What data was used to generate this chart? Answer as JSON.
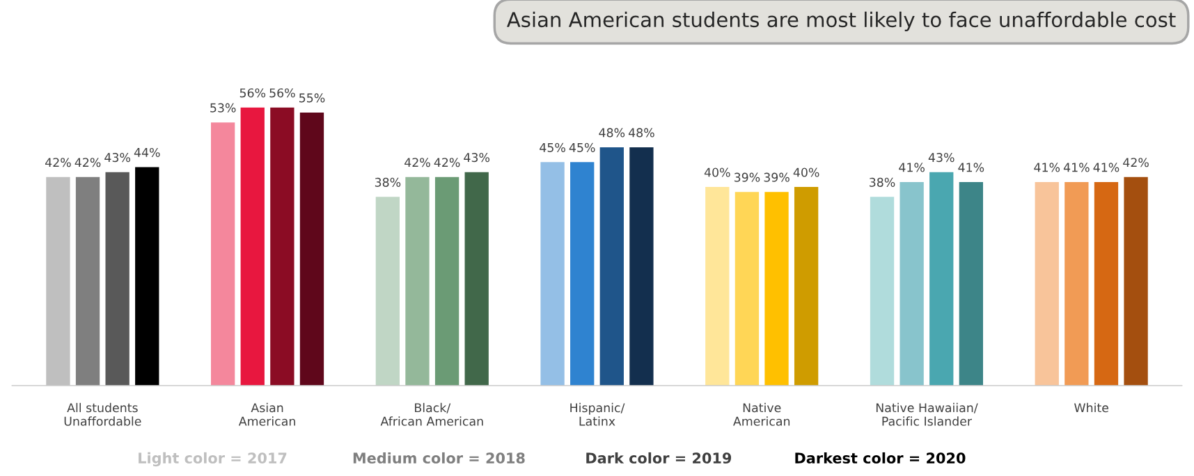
{
  "chart_data": {
    "type": "bar",
    "title": "Asian American students are most likely to face unaffordable cost",
    "categories": [
      "All students\nUnaffordable",
      "Asian\nAmerican",
      "Black/\nAfrican American",
      "Hispanic/\nLatinx",
      "Native\nAmerican",
      "Native Hawaiian/\nPacific Islander",
      "White"
    ],
    "series": [
      {
        "values": [
          42,
          53,
          38,
          45,
          40,
          38,
          41
        ],
        "value_labels": [
          "42%",
          "53%",
          "38%",
          "45%",
          "40%",
          "38%",
          "41%"
        ],
        "colors": [
          "#bfbfbf",
          "#f4879c",
          "#c0d6c5",
          "#94bfe6",
          "#ffe699",
          "#b0dcdc",
          "#f8c49a"
        ]
      },
      {
        "values": [
          42,
          56,
          42,
          45,
          39,
          41,
          41
        ],
        "value_labels": [
          "42%",
          "56%",
          "42%",
          "45%",
          "39%",
          "41%",
          "41%"
        ],
        "colors": [
          "#7f7f7f",
          "#e8173f",
          "#94b89a",
          "#2f83d0",
          "#ffd656",
          "#88c4cc",
          "#f19b55"
        ]
      },
      {
        "values": [
          43,
          56,
          42,
          48,
          39,
          43,
          41
        ],
        "value_labels": [
          "43%",
          "56%",
          "42%",
          "48%",
          "39%",
          "43%",
          "41%"
        ],
        "colors": [
          "#595959",
          "#8b0c24",
          "#6b9b75",
          "#1f558a",
          "#ffc000",
          "#4aa7b0",
          "#d66813"
        ]
      },
      {
        "values": [
          44,
          55,
          43,
          48,
          40,
          41,
          42
        ],
        "value_labels": [
          "44%",
          "55%",
          "43%",
          "48%",
          "40%",
          "41%",
          "42%"
        ],
        "colors": [
          "#000000",
          "#5f071b",
          "#41684a",
          "#132f4e",
          "#cf9c00",
          "#3d8588",
          "#a44f0f"
        ]
      }
    ],
    "annotations": [
      "Light color = 2017",
      "Medium color = 2018",
      "Dark color = 2019",
      "Darkest color = 2020"
    ],
    "grid": false,
    "legend": false
  }
}
